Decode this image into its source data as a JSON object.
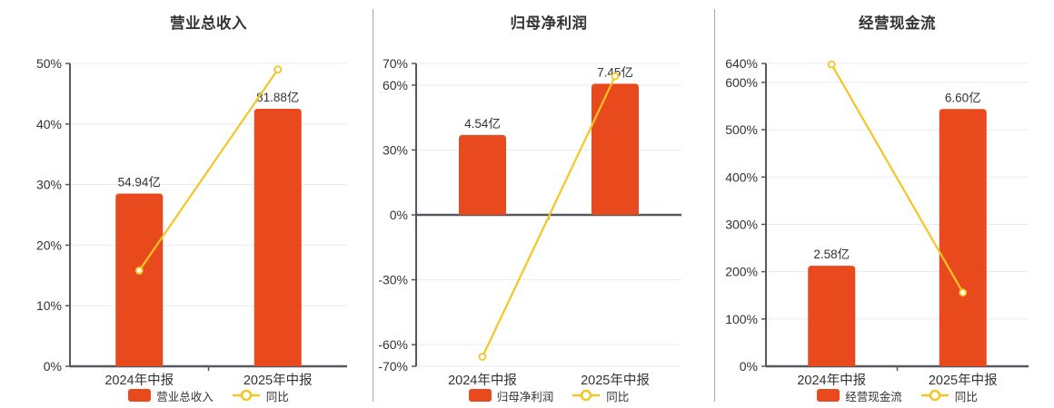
{
  "colors": {
    "background": "#ffffff",
    "bar": "#E8491D",
    "yoy_line": "#F5C623",
    "marker_fill": "#ffffff",
    "grid": "#E7EBF3",
    "axis": "#55585E",
    "text": "#333333",
    "separator": "#A8A8A8"
  },
  "chart_data": [
    {
      "type": "bar",
      "title": "营业总收入",
      "categories": [
        "2024年中报",
        "2025年中报"
      ],
      "bar_series": {
        "name": "营业总收入",
        "unit": "亿",
        "values": [
          54.94,
          81.88
        ],
        "labels": [
          "54.94亿",
          "81.88亿"
        ]
      },
      "line_series": {
        "name": "同比",
        "unit": "%",
        "values": [
          15.8,
          49.0
        ]
      },
      "y_axis": {
        "min": 0,
        "max": 50,
        "ticks": [
          0,
          10,
          20,
          30,
          40,
          50
        ],
        "tick_suffix": "%"
      },
      "bar_scale_max": 96.3,
      "grid": true,
      "legend_position": "bottom"
    },
    {
      "type": "bar",
      "title": "归母净利润",
      "categories": [
        "2024年中报",
        "2025年中报"
      ],
      "bar_series": {
        "name": "归母净利润",
        "unit": "亿",
        "values": [
          4.54,
          7.45
        ],
        "labels": [
          "4.54亿",
          "7.45亿"
        ]
      },
      "line_series": {
        "name": "同比",
        "unit": "%",
        "values": [
          -65.6,
          64.1
        ]
      },
      "y_axis": {
        "min": -70,
        "max": 70,
        "ticks": [
          -70,
          -60,
          -30,
          0,
          30,
          60,
          70
        ],
        "tick_suffix": "%"
      },
      "bar_scale_max": 8.6,
      "grid": true,
      "legend_position": "bottom"
    },
    {
      "type": "bar",
      "title": "经营现金流",
      "categories": [
        "2024年中报",
        "2025年中报"
      ],
      "bar_series": {
        "name": "经营现金流",
        "unit": "亿",
        "values": [
          2.58,
          6.6
        ],
        "labels": [
          "2.58亿",
          "6.60亿"
        ]
      },
      "line_series": {
        "name": "同比",
        "unit": "%",
        "values": [
          637.9,
          155.8
        ]
      },
      "y_axis": {
        "min": 0,
        "max": 640,
        "ticks": [
          0,
          100,
          200,
          300,
          400,
          500,
          600,
          640
        ],
        "tick_suffix": "%"
      },
      "bar_scale_max": 7.77,
      "grid": true,
      "legend_position": "bottom"
    }
  ]
}
